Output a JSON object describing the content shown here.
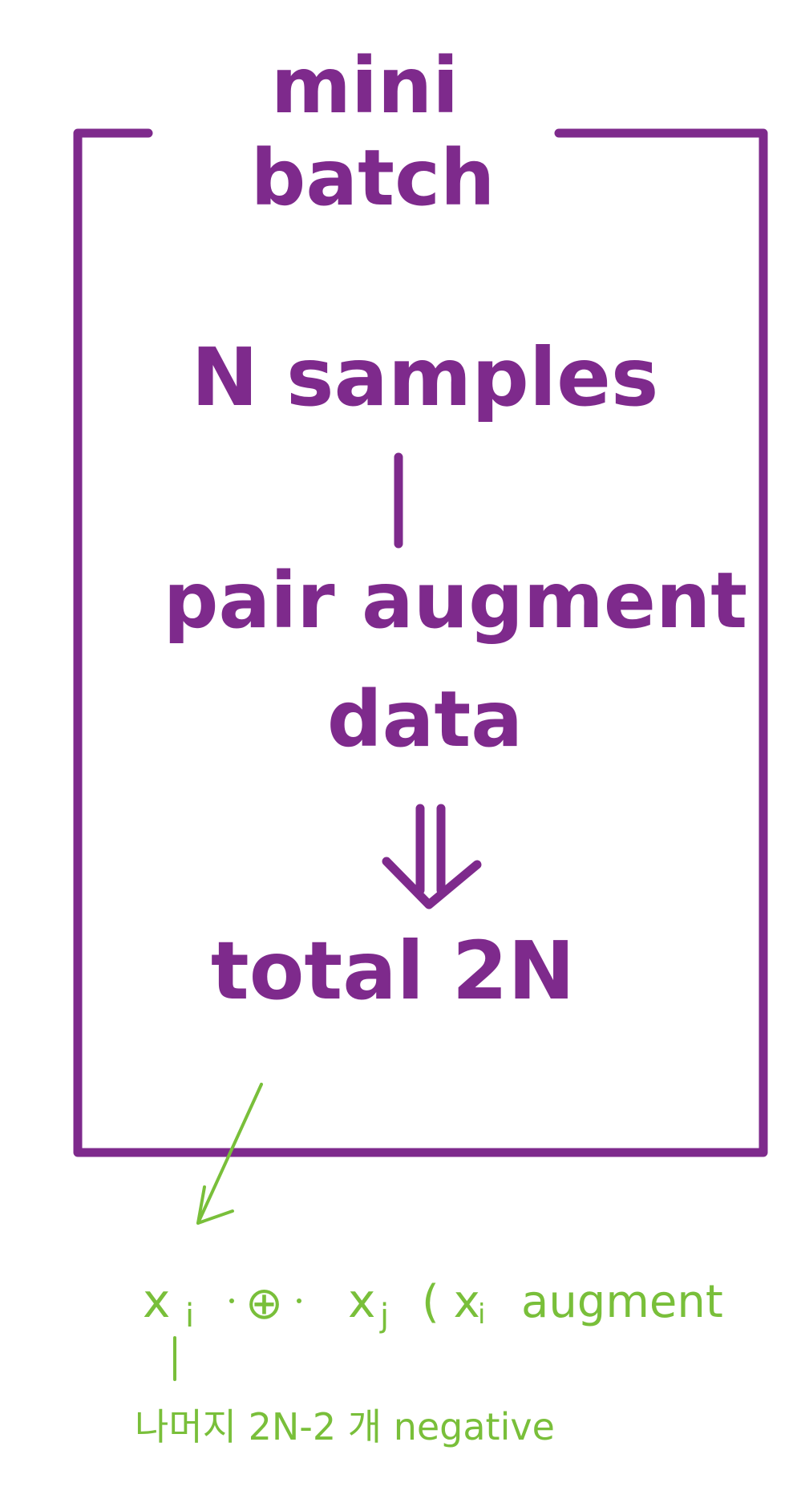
{
  "colors": {
    "box": "#7e2a8c",
    "annotation": "#79bf3a"
  },
  "diagram": {
    "title_line1": "mini",
    "title_line2": "batch",
    "step1": "N samples",
    "step2_line1": "pair augment",
    "step2_line2": "data",
    "step3": "total 2N"
  },
  "annotation": {
    "xi": "x",
    "xi_sub": "i",
    "oplus": "⊕",
    "xj": "x",
    "xj_sub": "j",
    "paren_note": "( x",
    "paren_sub": "i",
    "paren_word": "augment",
    "bottom_note": "나머지 2N-2 개  negative"
  }
}
